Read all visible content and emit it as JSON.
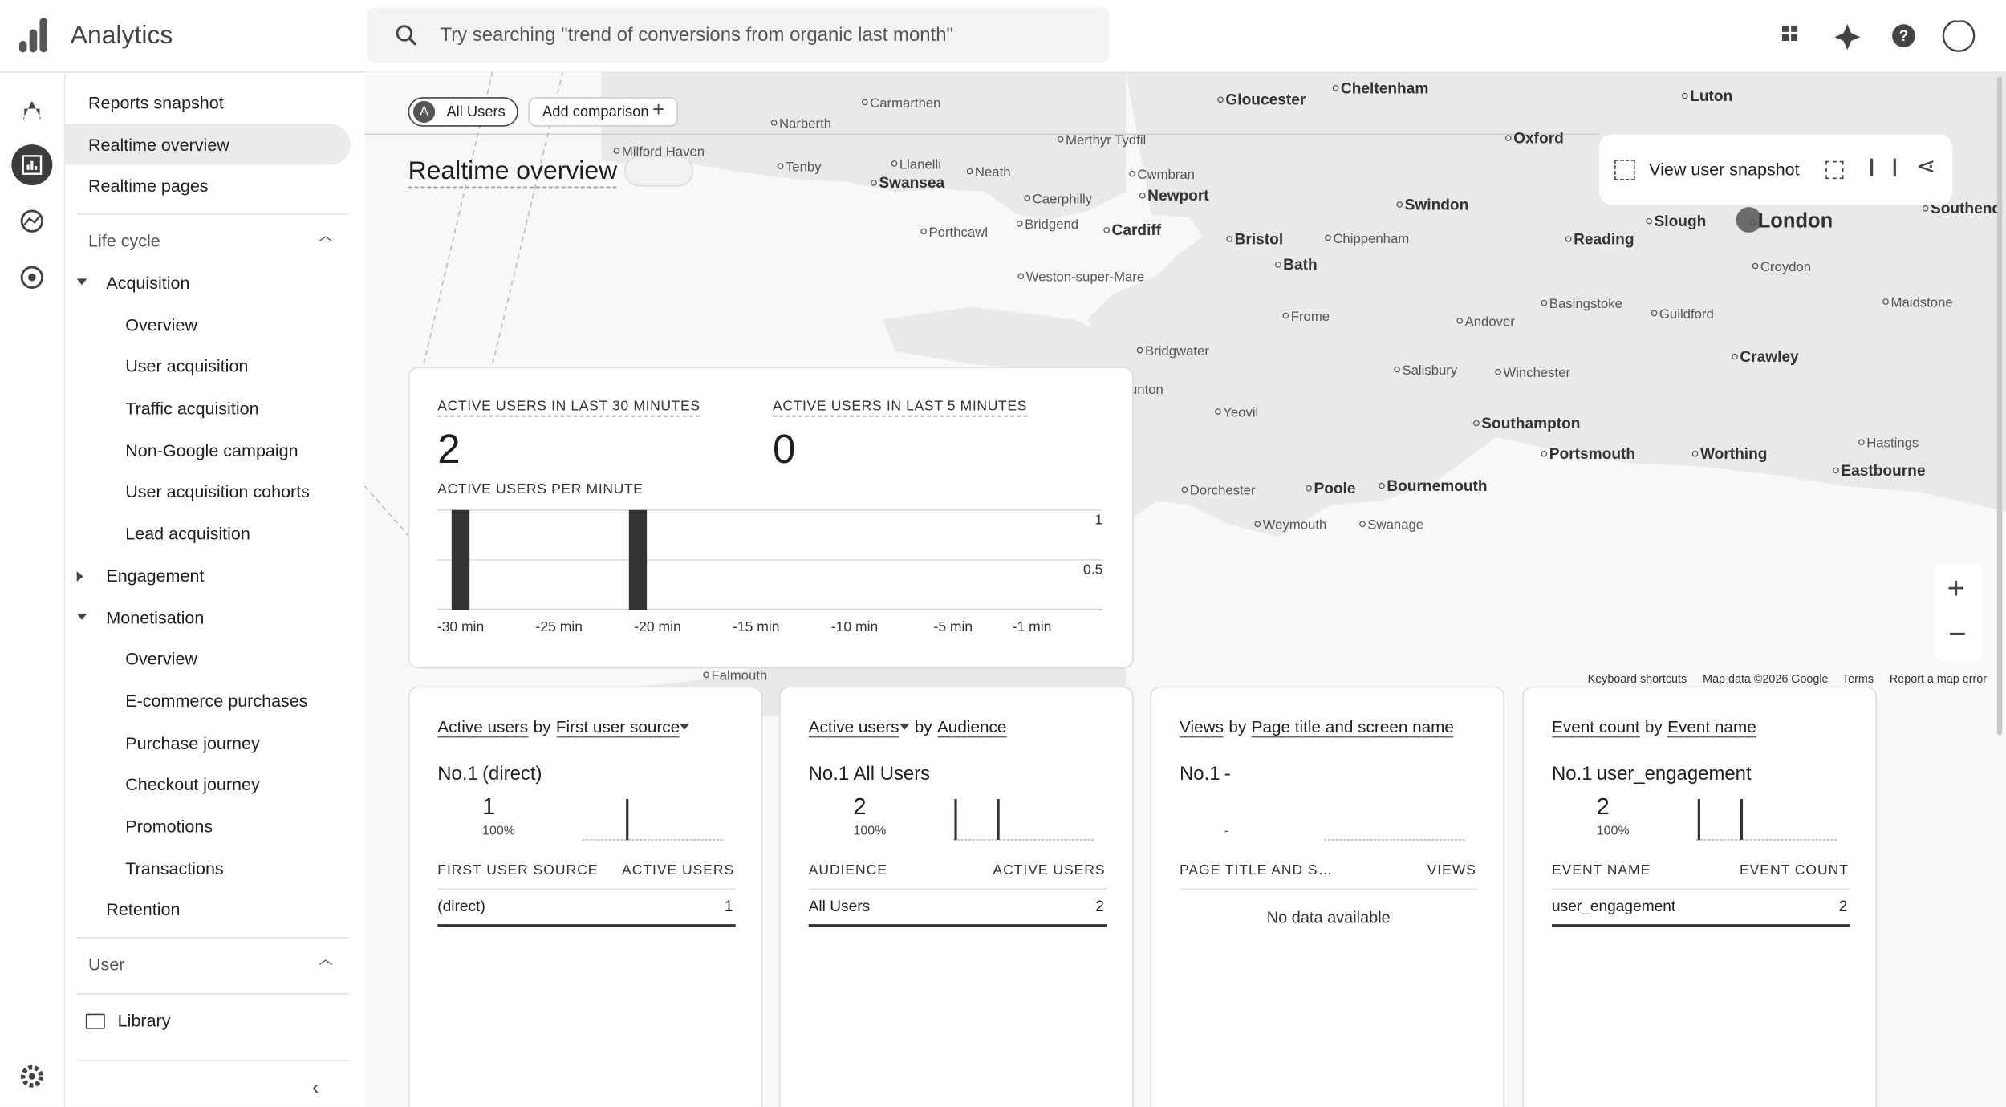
{
  "header": {
    "app_name": "Analytics",
    "search_placeholder": "Try searching \"trend of conversions from organic last month\""
  },
  "nav": {
    "top": [
      "Reports snapshot",
      "Realtime overview",
      "Realtime pages"
    ],
    "life_cycle": {
      "title": "Life cycle",
      "groups": [
        {
          "title": "Acquisition",
          "items": [
            "Overview",
            "User acquisition",
            "Traffic acquisition",
            "Non-Google campaign",
            "User acquisition cohorts",
            "Lead acquisition"
          ]
        },
        {
          "title": "Engagement",
          "items": []
        },
        {
          "title": "Monetisation",
          "items": [
            "Overview",
            "E-commerce purchases",
            "Purchase journey",
            "Checkout journey",
            "Promotions",
            "Transactions"
          ]
        },
        {
          "title": "Retention"
        }
      ]
    },
    "user": {
      "title": "User"
    },
    "library": "Library"
  },
  "toolbar": {
    "chip_badge": "A",
    "comparison_chip": "All Users",
    "add_comparison": "Add comparison",
    "title": "Realtime overview",
    "snapshot": "View user snapshot"
  },
  "map": {
    "places": [
      "Carmarthen",
      "Narberth",
      "Milford Haven",
      "Tenby",
      "Llanelli",
      "Swansea",
      "Neath",
      "Merthyr Tydfil",
      "Cwmbran",
      "Caerphilly",
      "Newport",
      "Bridgend",
      "Porthcawl",
      "Cardiff",
      "Weston-super-Mare",
      "Bristol",
      "Bath",
      "Chippenham",
      "Swindon",
      "Gloucester",
      "Cheltenham",
      "Luton",
      "Oxford",
      "Reading",
      "Slough",
      "London",
      "Croydon",
      "Southend",
      "Maidstone",
      "Frome",
      "Andover",
      "Basingstoke",
      "Guildford",
      "Crawley",
      "Bridgwater",
      "Taunton",
      "Salisbury",
      "Winchester",
      "Yeovil",
      "Southampton",
      "Portsmouth",
      "Worthing",
      "Hastings",
      "Eastbourne",
      "Dorchester",
      "Poole",
      "Bournemouth",
      "Weymouth",
      "Swanage",
      "Falmouth"
    ],
    "footer": [
      "Keyboard shortcuts",
      "Map data ©2026 Google",
      "Terms",
      "Report a map error"
    ]
  },
  "summary": {
    "last30_label": "ACTIVE USERS IN LAST 30 MINUTES",
    "last30": 2,
    "last5_label": "ACTIVE USERS IN LAST 5 MINUTES",
    "last5": 0
  },
  "chart_data": {
    "type": "bar",
    "title": "ACTIVE USERS PER MINUTE",
    "categories": [
      "-30 min",
      null,
      null,
      null,
      null,
      "-25 min",
      null,
      null,
      null,
      null,
      "-20 min",
      null,
      null,
      null,
      null,
      "-15 min",
      null,
      null,
      null,
      null,
      "-10 min",
      null,
      null,
      null,
      null,
      "-5 min",
      null,
      null,
      null,
      "-1 min"
    ],
    "values": [
      1,
      0,
      0,
      0,
      0,
      0,
      0,
      0,
      0,
      1,
      0,
      0,
      0,
      0,
      0,
      0,
      0,
      0,
      0,
      0,
      0,
      0,
      0,
      0,
      0,
      0,
      0,
      0,
      0,
      0
    ],
    "color": "#333333",
    "ylim": [
      0,
      1
    ],
    "yticks": [
      0.5,
      1
    ],
    "grid": true
  },
  "cards": [
    {
      "title": [
        "Active users",
        "by",
        "First user source"
      ],
      "rank": "No.1",
      "top_item": "(direct)",
      "top_value": 1,
      "top_share": "100%",
      "spark": [
        0,
        0,
        0,
        0,
        0,
        0,
        0,
        0,
        0,
        1,
        0,
        0,
        0,
        0,
        0,
        0,
        0,
        0,
        0,
        0,
        0,
        0,
        0,
        0,
        0,
        0,
        0,
        0,
        0,
        0
      ],
      "columns": [
        "FIRST USER SOURCE",
        "ACTIVE USERS"
      ],
      "rows": [
        [
          "(direct)",
          1
        ]
      ]
    },
    {
      "title": [
        "Active users",
        "by",
        "Audience"
      ],
      "rank": "No.1",
      "top_item": "All Users",
      "top_value": 2,
      "top_share": "100%",
      "spark": [
        1,
        0,
        0,
        0,
        0,
        0,
        0,
        0,
        0,
        1,
        0,
        0,
        0,
        0,
        0,
        0,
        0,
        0,
        0,
        0,
        0,
        0,
        0,
        0,
        0,
        0,
        0,
        0,
        0,
        0
      ],
      "columns": [
        "AUDIENCE",
        "ACTIVE USERS"
      ],
      "rows": [
        [
          "All Users",
          2
        ]
      ]
    },
    {
      "title": [
        "Views",
        "by",
        "Page title and screen name"
      ],
      "rank": "No.1",
      "top_item": "-",
      "top_share": "-",
      "columns": [
        "PAGE TITLE AND S…",
        "VIEWS"
      ],
      "empty": "No data available"
    },
    {
      "title": [
        "Event count",
        "by",
        "Event name"
      ],
      "rank": "No.1",
      "top_item": "user_engagement",
      "top_value": 2,
      "top_share": "100%",
      "spark": [
        1,
        0,
        0,
        0,
        0,
        0,
        0,
        0,
        0,
        1,
        0,
        0,
        0,
        0,
        0,
        0,
        0,
        0,
        0,
        0,
        0,
        0,
        0,
        0,
        0,
        0,
        0,
        0,
        0,
        0
      ],
      "columns": [
        "EVENT NAME",
        "EVENT COUNT"
      ],
      "rows": [
        [
          "user_engagement",
          2
        ]
      ]
    }
  ]
}
